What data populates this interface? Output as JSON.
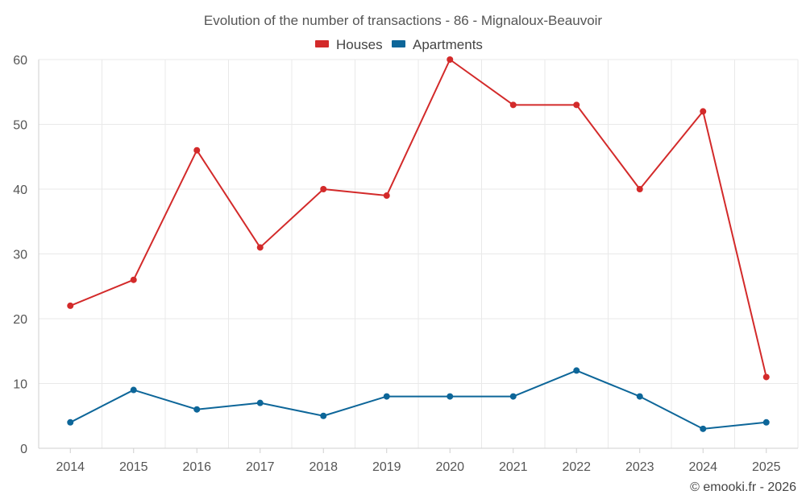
{
  "chart_data": {
    "type": "line",
    "title": "Evolution of the number of transactions - 86 - Mignaloux-Beauvoir",
    "xlabel": "",
    "ylabel": "",
    "categories": [
      "2014",
      "2015",
      "2016",
      "2017",
      "2018",
      "2019",
      "2020",
      "2021",
      "2022",
      "2023",
      "2024",
      "2025"
    ],
    "series": [
      {
        "name": "Houses",
        "color": "#d32a2a",
        "values": [
          22,
          26,
          46,
          31,
          40,
          39,
          60,
          53,
          53,
          40,
          52,
          11
        ]
      },
      {
        "name": "Apartments",
        "color": "#0d6699",
        "values": [
          4,
          9,
          6,
          7,
          5,
          8,
          8,
          8,
          12,
          8,
          3,
          4
        ]
      }
    ],
    "ylim": [
      0,
      60
    ],
    "yticks": [
      0,
      10,
      20,
      30,
      40,
      50,
      60
    ],
    "grid": true,
    "legend_position": "top-center"
  },
  "credit": "© emooki.fr - 2026"
}
